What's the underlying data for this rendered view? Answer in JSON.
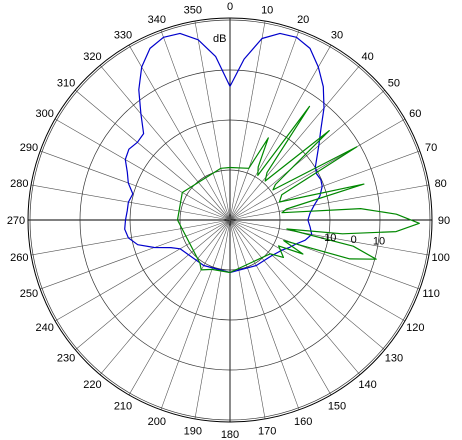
{
  "chart_data": {
    "type": "polar-line",
    "unit_label": "dB",
    "radial_ticks": [
      -10,
      0,
      10
    ],
    "radial_range_db": [
      -30,
      30
    ],
    "angle_ticks_deg": [
      0,
      10,
      20,
      30,
      40,
      50,
      60,
      70,
      80,
      90,
      100,
      110,
      120,
      130,
      140,
      150,
      160,
      170,
      180,
      190,
      200,
      210,
      220,
      230,
      240,
      250,
      260,
      270,
      280,
      290,
      300,
      310,
      320,
      330,
      340,
      350
    ],
    "angle_labels": [
      "0",
      "10",
      "20",
      "30",
      "40",
      "50",
      "60",
      "70",
      "80",
      "90",
      "100",
      "110",
      "120",
      "130",
      "140",
      "150",
      "160",
      "170",
      "180",
      "190",
      "200",
      "210",
      "220",
      "230",
      "240",
      "250",
      "260",
      "270",
      "280",
      "290",
      "300",
      "310",
      "320",
      "330",
      "340",
      "350"
    ],
    "angle_zero": "top",
    "angle_direction": "clockwise",
    "grid": true,
    "series": [
      {
        "color": "#0000cc",
        "points_deg_db": [
          [
            0,
            3
          ],
          [
            5,
            14
          ],
          [
            10,
            23
          ],
          [
            15,
            26.5
          ],
          [
            20,
            27
          ],
          [
            25,
            25
          ],
          [
            30,
            20
          ],
          [
            35,
            14.5
          ],
          [
            40,
            8
          ],
          [
            45,
            1
          ],
          [
            50,
            -4
          ],
          [
            55,
            -8
          ],
          [
            58,
            -10
          ],
          [
            62,
            -11
          ],
          [
            66,
            -10.5
          ],
          [
            70,
            -11
          ],
          [
            75,
            -13
          ],
          [
            80,
            -16
          ],
          [
            85,
            -18
          ],
          [
            90,
            -19
          ],
          [
            95,
            -18
          ],
          [
            100,
            -17
          ],
          [
            105,
            -19
          ],
          [
            110,
            -22
          ],
          [
            115,
            -24
          ],
          [
            120,
            -26
          ],
          [
            130,
            -28
          ],
          [
            150,
            -29
          ],
          [
            180,
            -29
          ],
          [
            210,
            -29
          ],
          [
            240,
            -27
          ],
          [
            245,
            -24
          ],
          [
            250,
            -18
          ],
          [
            255,
            -12
          ],
          [
            260,
            -9
          ],
          [
            265,
            -8
          ],
          [
            270,
            -8.5
          ],
          [
            275,
            -9
          ],
          [
            280,
            -9
          ],
          [
            285,
            -10
          ],
          [
            290,
            -7
          ],
          [
            295,
            -5
          ],
          [
            300,
            -2
          ],
          [
            305,
            -1
          ],
          [
            310,
            -2
          ],
          [
            315,
            -1.5
          ],
          [
            320,
            5
          ],
          [
            325,
            13
          ],
          [
            330,
            20
          ],
          [
            335,
            25
          ],
          [
            340,
            27
          ],
          [
            345,
            26.5
          ],
          [
            350,
            22.5
          ],
          [
            355,
            15
          ],
          [
            360,
            3
          ]
        ]
      },
      {
        "color": "#008800",
        "points_deg_db": [
          [
            0,
            -29
          ],
          [
            20,
            -28
          ],
          [
            25,
            -14
          ],
          [
            28,
            -26
          ],
          [
            32,
            -29
          ],
          [
            35,
            5
          ],
          [
            38,
            -26
          ],
          [
            42,
            -29
          ],
          [
            48,
            3
          ],
          [
            52,
            -27
          ],
          [
            55,
            -29
          ],
          [
            60,
            8
          ],
          [
            64,
            -27
          ],
          [
            70,
            -29
          ],
          [
            75,
            5
          ],
          [
            79,
            -27
          ],
          [
            82,
            -29
          ],
          [
            85,
            2
          ],
          [
            88,
            16
          ],
          [
            91,
            25
          ],
          [
            94,
            16
          ],
          [
            97,
            -5
          ],
          [
            99,
            -27
          ],
          [
            102,
            0
          ],
          [
            105,
            10
          ],
          [
            108,
            0
          ],
          [
            111,
            -27
          ],
          [
            115,
            -18
          ],
          [
            118,
            -28
          ],
          [
            125,
            -24
          ],
          [
            130,
            -29
          ],
          [
            180,
            -29
          ],
          [
            200,
            -29
          ],
          [
            210,
            -27
          ],
          [
            215,
            -29
          ],
          [
            270,
            -29
          ],
          [
            300,
            -28
          ],
          [
            350,
            -29
          ],
          [
            360,
            -29
          ]
        ]
      }
    ]
  }
}
